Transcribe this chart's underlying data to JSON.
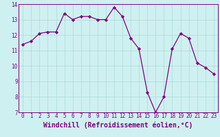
{
  "x": [
    0,
    1,
    2,
    3,
    4,
    5,
    6,
    7,
    8,
    9,
    10,
    11,
    12,
    13,
    14,
    15,
    16,
    17,
    18,
    19,
    20,
    21,
    22,
    23
  ],
  "y": [
    11.4,
    11.6,
    12.1,
    12.2,
    12.2,
    13.4,
    13.0,
    13.2,
    13.2,
    13.0,
    13.0,
    13.8,
    13.2,
    11.8,
    11.1,
    8.3,
    7.0,
    8.0,
    11.1,
    12.1,
    11.8,
    10.2,
    9.9,
    9.5
  ],
  "line_color": "#800080",
  "marker": "D",
  "marker_size": 2.2,
  "bg_color": "#cff0f0",
  "grid_color": "#aadada",
  "xlabel": "Windchill (Refroidissement éolien,°C)",
  "xlabel_color": "#800080",
  "ylim": [
    7,
    14
  ],
  "xlim_min": -0.5,
  "xlim_max": 23.5,
  "yticks": [
    7,
    8,
    9,
    10,
    11,
    12,
    13,
    14
  ],
  "xticks": [
    0,
    1,
    2,
    3,
    4,
    5,
    6,
    7,
    8,
    9,
    10,
    11,
    12,
    13,
    14,
    15,
    16,
    17,
    18,
    19,
    20,
    21,
    22,
    23
  ],
  "tick_fontsize": 5.5,
  "xlabel_fontsize": 7.0,
  "spine_color": "#800080",
  "line_width": 0.9
}
